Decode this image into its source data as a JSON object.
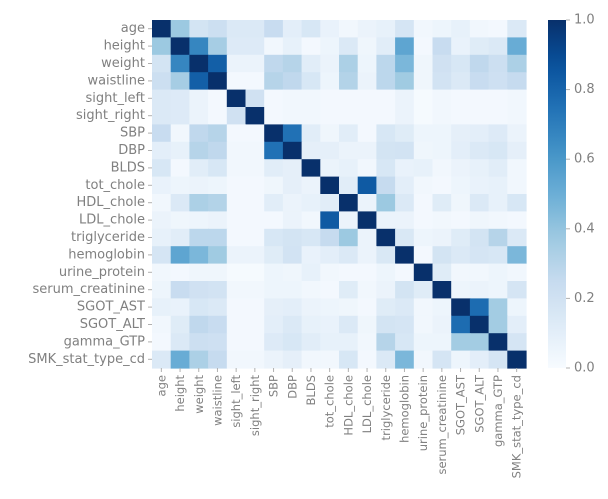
{
  "chart_data": {
    "type": "heatmap",
    "title": "",
    "xlabel": "",
    "ylabel": "",
    "labels": [
      "age",
      "height",
      "weight",
      "waistline",
      "sight_left",
      "sight_right",
      "SBP",
      "DBP",
      "BLDS",
      "tot_chole",
      "HDL_chole",
      "LDL_chole",
      "triglyceride",
      "hemoglobin",
      "urine_protein",
      "serum_creatinine",
      "SGOT_AST",
      "SGOT_ALT",
      "gamma_GTP",
      "SMK_stat_type_cd"
    ],
    "matrix": [
      [
        1.0,
        0.38,
        0.18,
        0.22,
        0.14,
        0.14,
        0.24,
        0.1,
        0.16,
        0.07,
        0.03,
        0.06,
        0.08,
        0.17,
        0.03,
        0.05,
        0.08,
        0.03,
        0.02,
        0.14
      ],
      [
        0.38,
        1.0,
        0.67,
        0.35,
        0.13,
        0.13,
        0.03,
        0.08,
        0.02,
        0.05,
        0.14,
        0.04,
        0.11,
        0.54,
        0.02,
        0.24,
        0.07,
        0.12,
        0.14,
        0.51
      ],
      [
        0.18,
        0.67,
        1.0,
        0.82,
        0.06,
        0.06,
        0.27,
        0.3,
        0.11,
        0.06,
        0.33,
        0.05,
        0.28,
        0.46,
        0.04,
        0.2,
        0.16,
        0.27,
        0.22,
        0.33
      ],
      [
        0.22,
        0.35,
        0.82,
        1.0,
        0.02,
        0.02,
        0.3,
        0.27,
        0.16,
        0.05,
        0.31,
        0.06,
        0.28,
        0.37,
        0.04,
        0.19,
        0.14,
        0.24,
        0.21,
        0.25
      ],
      [
        0.14,
        0.13,
        0.06,
        0.02,
        1.0,
        0.2,
        0.02,
        0.03,
        0.03,
        0.02,
        0.02,
        0.02,
        0.02,
        0.06,
        0.01,
        0.03,
        0.02,
        0.02,
        0.02,
        0.03
      ],
      [
        0.14,
        0.13,
        0.06,
        0.02,
        0.2,
        1.0,
        0.02,
        0.03,
        0.03,
        0.02,
        0.02,
        0.02,
        0.02,
        0.06,
        0.01,
        0.03,
        0.02,
        0.02,
        0.02,
        0.03
      ],
      [
        0.24,
        0.03,
        0.27,
        0.3,
        0.02,
        0.02,
        1.0,
        0.75,
        0.11,
        0.04,
        0.11,
        0.02,
        0.16,
        0.12,
        0.05,
        0.05,
        0.09,
        0.1,
        0.13,
        0.06
      ],
      [
        0.1,
        0.08,
        0.3,
        0.27,
        0.03,
        0.03,
        0.75,
        1.0,
        0.09,
        0.09,
        0.06,
        0.06,
        0.18,
        0.19,
        0.04,
        0.05,
        0.1,
        0.14,
        0.16,
        0.09
      ],
      [
        0.16,
        0.02,
        0.11,
        0.16,
        0.03,
        0.03,
        0.11,
        0.09,
        1.0,
        0.06,
        0.08,
        0.03,
        0.16,
        0.07,
        0.08,
        0.03,
        0.06,
        0.08,
        0.11,
        0.03
      ],
      [
        0.07,
        0.05,
        0.06,
        0.05,
        0.02,
        0.02,
        0.04,
        0.09,
        0.06,
        1.0,
        0.11,
        0.84,
        0.25,
        0.1,
        0.03,
        0.02,
        0.05,
        0.07,
        0.08,
        0.03
      ],
      [
        0.03,
        0.14,
        0.33,
        0.31,
        0.02,
        0.02,
        0.11,
        0.06,
        0.08,
        0.11,
        1.0,
        0.06,
        0.38,
        0.14,
        0.02,
        0.12,
        0.04,
        0.14,
        0.08,
        0.16
      ],
      [
        0.06,
        0.04,
        0.05,
        0.06,
        0.02,
        0.02,
        0.02,
        0.06,
        0.03,
        0.84,
        0.06,
        1.0,
        0.06,
        0.06,
        0.02,
        0.03,
        0.02,
        0.04,
        0.03,
        0.02
      ],
      [
        0.08,
        0.11,
        0.28,
        0.28,
        0.02,
        0.02,
        0.16,
        0.18,
        0.16,
        0.25,
        0.38,
        0.06,
        1.0,
        0.15,
        0.05,
        0.06,
        0.12,
        0.18,
        0.3,
        0.14
      ],
      [
        0.17,
        0.54,
        0.46,
        0.37,
        0.06,
        0.06,
        0.12,
        0.19,
        0.07,
        0.1,
        0.14,
        0.06,
        0.15,
        1.0,
        0.02,
        0.18,
        0.14,
        0.17,
        0.16,
        0.46
      ],
      [
        0.03,
        0.02,
        0.04,
        0.04,
        0.01,
        0.01,
        0.05,
        0.04,
        0.08,
        0.03,
        0.02,
        0.02,
        0.05,
        0.02,
        1.0,
        0.12,
        0.03,
        0.03,
        0.05,
        0.03
      ],
      [
        0.05,
        0.24,
        0.2,
        0.19,
        0.03,
        0.03,
        0.05,
        0.05,
        0.03,
        0.02,
        0.12,
        0.03,
        0.06,
        0.18,
        0.12,
        1.0,
        0.05,
        0.06,
        0.05,
        0.17
      ],
      [
        0.08,
        0.07,
        0.16,
        0.14,
        0.02,
        0.02,
        0.09,
        0.1,
        0.06,
        0.05,
        0.04,
        0.02,
        0.12,
        0.14,
        0.03,
        0.05,
        1.0,
        0.77,
        0.36,
        0.05
      ],
      [
        0.03,
        0.12,
        0.27,
        0.24,
        0.02,
        0.02,
        0.1,
        0.14,
        0.08,
        0.07,
        0.14,
        0.04,
        0.18,
        0.17,
        0.03,
        0.06,
        0.77,
        1.0,
        0.36,
        0.1
      ],
      [
        0.02,
        0.14,
        0.22,
        0.21,
        0.02,
        0.02,
        0.13,
        0.16,
        0.11,
        0.08,
        0.08,
        0.03,
        0.3,
        0.16,
        0.05,
        0.05,
        0.36,
        0.36,
        1.0,
        0.17
      ],
      [
        0.14,
        0.51,
        0.33,
        0.25,
        0.03,
        0.03,
        0.06,
        0.09,
        0.03,
        0.03,
        0.16,
        0.02,
        0.14,
        0.46,
        0.03,
        0.17,
        0.05,
        0.1,
        0.17,
        1.0
      ]
    ],
    "vmin": 0.0,
    "vmax": 1.0,
    "colormap": "Blues",
    "colorbar_ticks": [
      "0.0",
      "0.2",
      "0.4",
      "0.6",
      "0.8",
      "1.0"
    ],
    "grid": false
  }
}
